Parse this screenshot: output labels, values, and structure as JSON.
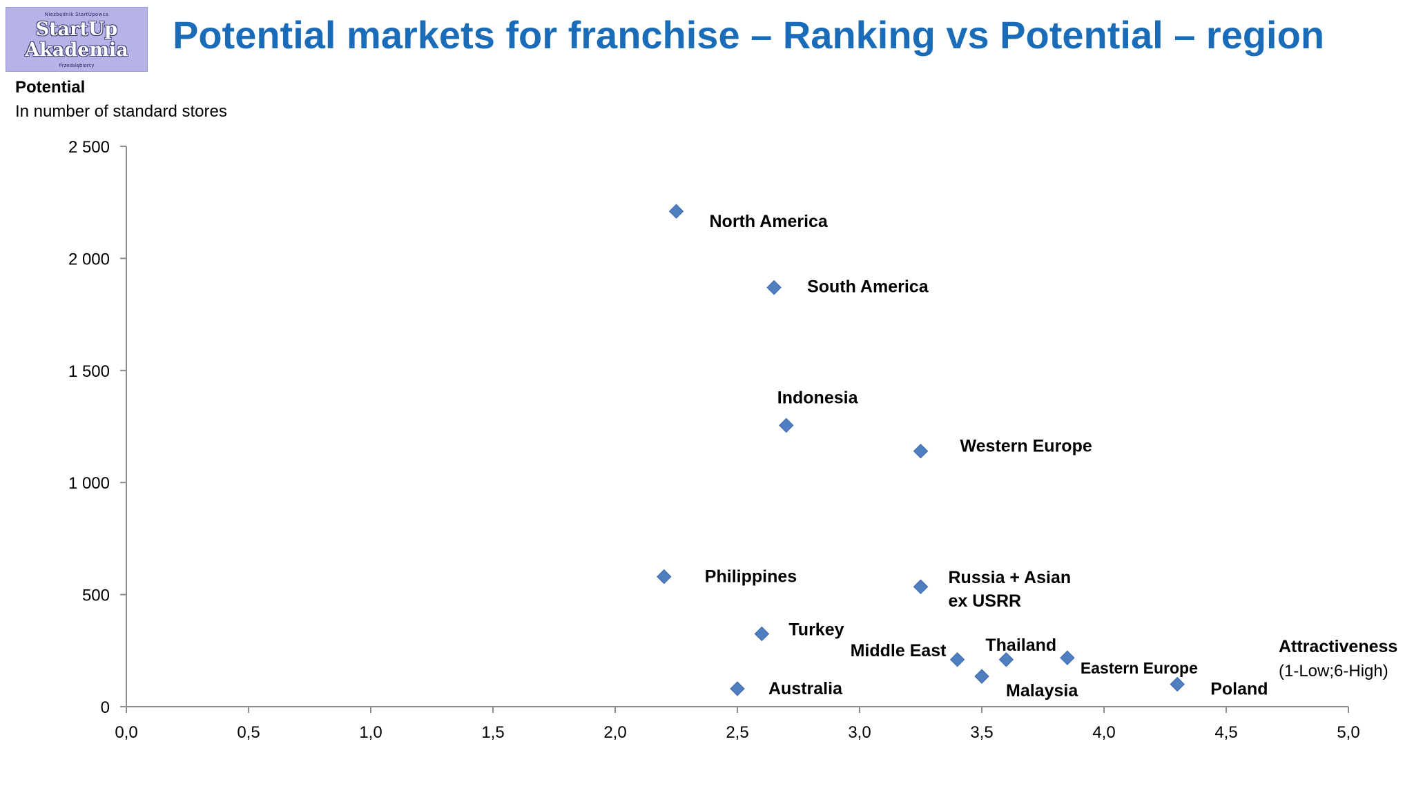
{
  "logo": {
    "tagline_top": "Niezbędnik StartUpowca",
    "word1": "StartUp",
    "word2": "Akademia",
    "tagline_bottom": "Przedsiębiorcy"
  },
  "title": "Potential markets for franchise – Ranking vs Potential – region",
  "colors": {
    "title": "#1a6bb8",
    "marker": "#4f7fc1",
    "marker_stroke": "#3a66a8",
    "axis": "#8c8c8c"
  },
  "chart_data": {
    "type": "scatter",
    "title": "Potential markets for franchise – Ranking vs Potential – region",
    "ylabel": "Potential",
    "ylabel_sub": "In number of standard stores",
    "xlabel": "Attractiveness",
    "xlabel_sub": "(1-Low;6-High)",
    "xlim": [
      0,
      5
    ],
    "ylim": [
      0,
      2500
    ],
    "x_ticks": [
      "0,0",
      "0,5",
      "1,0",
      "1,5",
      "2,0",
      "2,5",
      "3,0",
      "3,5",
      "4,0",
      "4,5",
      "5,0"
    ],
    "y_ticks": [
      "0",
      "500",
      "1 000",
      "1 500",
      "2 000",
      "2 500"
    ],
    "grid": false,
    "marker": "diamond",
    "points": [
      {
        "label": "North America",
        "x": 2.25,
        "y": 2210
      },
      {
        "label": "South America",
        "x": 2.65,
        "y": 1870
      },
      {
        "label": "Indonesia",
        "x": 2.7,
        "y": 1255
      },
      {
        "label": "Western Europe",
        "x": 3.25,
        "y": 1140
      },
      {
        "label": "Philippines",
        "x": 2.2,
        "y": 580
      },
      {
        "label": "Russia + Asian ex USRR",
        "label_lines": [
          "Russia + Asian",
          "ex USRR"
        ],
        "x": 3.25,
        "y": 535
      },
      {
        "label": "Turkey",
        "x": 2.6,
        "y": 325
      },
      {
        "label": "Middle East",
        "x": 3.4,
        "y": 210
      },
      {
        "label": "Thailand",
        "x": 3.6,
        "y": 210
      },
      {
        "label": "Eastern Europe",
        "x": 3.85,
        "y": 218
      },
      {
        "label": "Malaysia",
        "x": 3.5,
        "y": 135
      },
      {
        "label": "Australia",
        "x": 2.5,
        "y": 80
      },
      {
        "label": "Poland",
        "x": 4.3,
        "y": 100
      }
    ]
  }
}
